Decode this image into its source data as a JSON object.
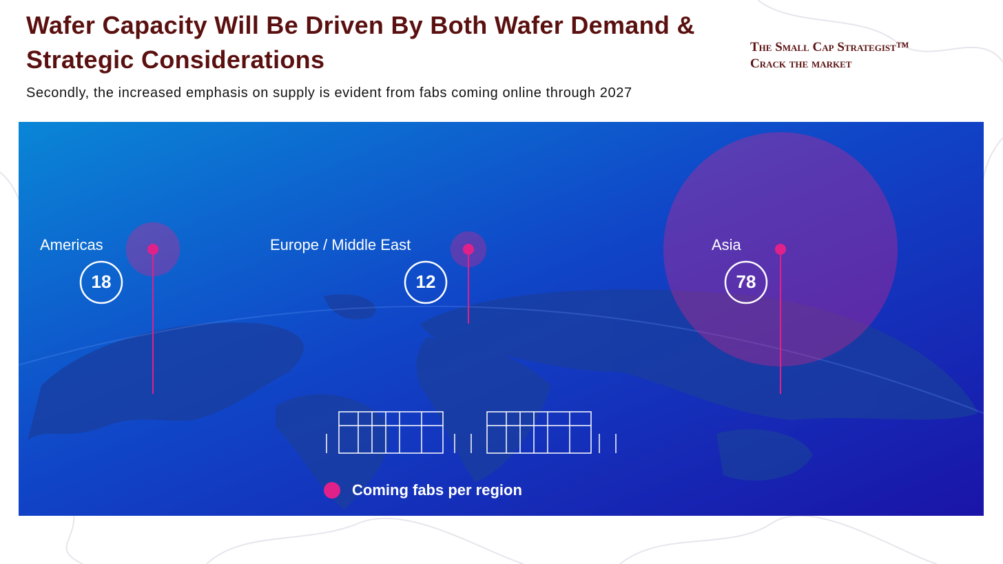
{
  "chart_data": {
    "type": "bubble",
    "title": "Wafer Capacity Will Be Driven By Both Wafer Demand & Strategic Considerations",
    "subtitle": "Secondly, the increased emphasis on supply is evident from fabs coming online through 2027",
    "categories": [
      "Americas",
      "Europe / Middle East",
      "Asia"
    ],
    "series": [
      {
        "name": "Coming fabs per region",
        "color": "#e0218a",
        "values": [
          18,
          12,
          78
        ]
      }
    ]
  },
  "brand": {
    "name": "The Small Cap Strategist™",
    "tagline": "Crack the market"
  }
}
